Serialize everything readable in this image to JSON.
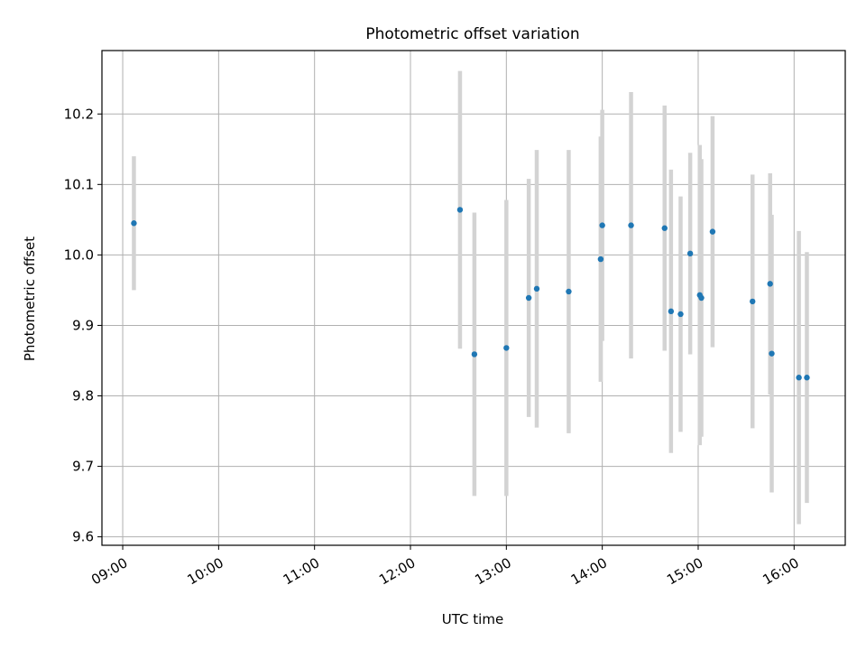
{
  "chart_data": {
    "type": "scatter",
    "title": "Photometric offset variation",
    "xlabel": "UTC time",
    "ylabel": "Photometric offset",
    "x_axis": "time",
    "xlim": [
      "08:47",
      "16:32"
    ],
    "ylim": [
      9.588,
      10.29
    ],
    "xticks": [
      "09:00",
      "10:00",
      "11:00",
      "12:00",
      "13:00",
      "14:00",
      "15:00",
      "16:00"
    ],
    "yticks": [
      9.6,
      9.7,
      9.8,
      9.9,
      10.0,
      10.1,
      10.2
    ],
    "grid": true,
    "legend": "none",
    "colors": {
      "point": "#1f77b4",
      "errorbar": "#d3d3d3",
      "grid": "#b0b0b0"
    },
    "series": [
      {
        "points": [
          {
            "x": "09:07",
            "y": 10.045,
            "err": 0.095
          },
          {
            "x": "12:31",
            "y": 10.064,
            "err": 0.197
          },
          {
            "x": "12:40",
            "y": 9.859,
            "err": 0.201
          },
          {
            "x": "13:00",
            "y": 9.868,
            "err": 0.21
          },
          {
            "x": "13:14",
            "y": 9.939,
            "err": 0.169
          },
          {
            "x": "13:19",
            "y": 9.952,
            "err": 0.197
          },
          {
            "x": "13:39",
            "y": 9.948,
            "err": 0.201
          },
          {
            "x": "13:59",
            "y": 9.994,
            "err": 0.174
          },
          {
            "x": "14:00",
            "y": 10.042,
            "err": 0.164
          },
          {
            "x": "14:18",
            "y": 10.042,
            "err": 0.189
          },
          {
            "x": "14:39",
            "y": 10.038,
            "err": 0.174
          },
          {
            "x": "14:43",
            "y": 9.92,
            "err": 0.201
          },
          {
            "x": "14:49",
            "y": 9.916,
            "err": 0.167
          },
          {
            "x": "14:55",
            "y": 10.002,
            "err": 0.143
          },
          {
            "x": "15:01",
            "y": 9.943,
            "err": 0.213
          },
          {
            "x": "15:02",
            "y": 9.939,
            "err": 0.197
          },
          {
            "x": "15:09",
            "y": 10.033,
            "err": 0.164
          },
          {
            "x": "15:34",
            "y": 9.934,
            "err": 0.18
          },
          {
            "x": "15:45",
            "y": 9.959,
            "err": 0.157
          },
          {
            "x": "15:46",
            "y": 9.86,
            "err": 0.197
          },
          {
            "x": "16:03",
            "y": 9.826,
            "err": 0.208
          },
          {
            "x": "16:08",
            "y": 9.826,
            "err": 0.178
          }
        ]
      }
    ]
  }
}
